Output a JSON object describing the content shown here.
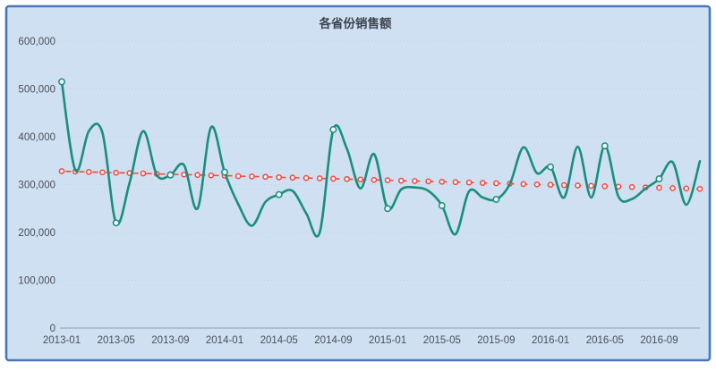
{
  "window": {
    "background": "#ffffff",
    "border_color": "#4678bb",
    "canvas_bg": "#cfe0f2"
  },
  "chart_data": {
    "type": "line",
    "title": "各省份销售额",
    "legend": "none",
    "grid": "horizontal-dotted",
    "ylim": [
      0,
      600000
    ],
    "y_ticks": [
      0,
      100000,
      200000,
      300000,
      400000,
      500000,
      600000
    ],
    "y_tick_labels": [
      "0",
      "100,000",
      "200,000",
      "300,000",
      "400,000",
      "500,000",
      "600,000"
    ],
    "x_tick_every": 4,
    "x_tick_labels": [
      "2013-01",
      "2013-05",
      "2013-09",
      "2014-01",
      "2014-05",
      "2014-09",
      "2015-01",
      "2015-05",
      "2015-09",
      "2016-01",
      "2016-05",
      "2016-09"
    ],
    "x": [
      "2013-01",
      "2013-02",
      "2013-03",
      "2013-04",
      "2013-05",
      "2013-06",
      "2013-07",
      "2013-08",
      "2013-09",
      "2013-10",
      "2013-11",
      "2013-12",
      "2014-01",
      "2014-02",
      "2014-03",
      "2014-04",
      "2014-05",
      "2014-06",
      "2014-07",
      "2014-08",
      "2014-09",
      "2014-10",
      "2014-11",
      "2014-12",
      "2015-01",
      "2015-02",
      "2015-03",
      "2015-04",
      "2015-05",
      "2015-06",
      "2015-07",
      "2015-08",
      "2015-09",
      "2015-10",
      "2015-11",
      "2015-12",
      "2016-01",
      "2016-02",
      "2016-03",
      "2016-04",
      "2016-05",
      "2016-06",
      "2016-07",
      "2016-08",
      "2016-09",
      "2016-10",
      "2016-11",
      "2016-12"
    ],
    "series": [
      {
        "id": "monthly-sales",
        "color": "#1a8e7f",
        "line_style": "solid-smooth",
        "line_width": 2.6,
        "marker": "open-circle",
        "marker_every": 4,
        "values": [
          515000,
          330000,
          412000,
          408000,
          220000,
          304000,
          412000,
          320000,
          320000,
          341000,
          250000,
          420000,
          326000,
          259000,
          214000,
          264000,
          279000,
          287000,
          240000,
          200000,
          415000,
          375000,
          292000,
          364000,
          250000,
          290000,
          294000,
          287000,
          256000,
          196000,
          286000,
          273000,
          269000,
          301000,
          378000,
          324000,
          337000,
          273000,
          379000,
          273000,
          381000,
          275000,
          270000,
          292000,
          312000,
          347000,
          258000,
          349000
        ]
      },
      {
        "id": "trend",
        "color": "#ee4b40",
        "line_style": "dashed",
        "line_width": 1.6,
        "marker": "open-circle",
        "marker_every": 1,
        "values": [
          328000,
          327200,
          326400,
          325600,
          324900,
          324100,
          323300,
          322500,
          321700,
          320900,
          320100,
          319300,
          318600,
          317800,
          317000,
          316200,
          315400,
          314600,
          313800,
          313000,
          312300,
          311500,
          310700,
          309900,
          309100,
          308300,
          307500,
          306700,
          306000,
          305200,
          304400,
          303600,
          302800,
          302000,
          301200,
          300400,
          299700,
          298900,
          298100,
          297300,
          296500,
          295700,
          294900,
          294100,
          293400,
          292600,
          291800,
          291000
        ]
      }
    ]
  }
}
